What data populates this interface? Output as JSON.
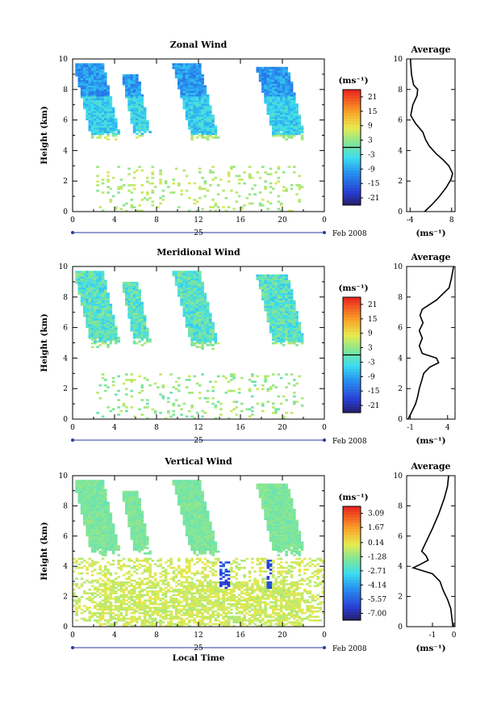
{
  "figure": {
    "date_label": "Feb 2008",
    "day_label": "25",
    "xlabel_bottom": "Local Time",
    "avg_title": "Average",
    "avg_unit": "(ms⁻¹)",
    "cbar_unit": "(ms⁻¹)"
  },
  "chart_data": [
    {
      "type": "heatmap",
      "title": "Zonal Wind",
      "xlabel": "",
      "ylabel": "Height (km)",
      "x_ticks": [
        "0",
        "4",
        "8",
        "12",
        "16",
        "20",
        "0"
      ],
      "y_ticks": [
        "0",
        "2",
        "4",
        "6",
        "8",
        "10"
      ],
      "xlim": [
        0,
        24
      ],
      "ylim": [
        0,
        10
      ],
      "colorbar": {
        "unit": "(ms⁻¹)",
        "ticks": [
          "21",
          "15",
          "9",
          "3",
          "-3",
          "-9",
          "-15",
          "-21"
        ],
        "range": [
          -24,
          24
        ],
        "zero_line": 0
      },
      "average_profile": {
        "title": "Average",
        "xlabel": "(ms⁻¹)",
        "x_ticks": [
          "-4",
          "8"
        ],
        "xlim": [
          -5,
          9
        ],
        "y_ticks": [
          "0",
          "2",
          "4",
          "6",
          "8",
          "10"
        ],
        "points": [
          [
            0.2,
            0
          ],
          [
            2.5,
            0.5
          ],
          [
            4.5,
            1.0
          ],
          [
            6.5,
            1.6
          ],
          [
            7.8,
            2.1
          ],
          [
            8.3,
            2.5
          ],
          [
            7.2,
            3.0
          ],
          [
            5.5,
            3.4
          ],
          [
            3.5,
            3.8
          ],
          [
            1.5,
            4.3
          ],
          [
            0.5,
            4.7
          ],
          [
            -0.3,
            5.2
          ],
          [
            -2.5,
            5.8
          ],
          [
            -3.8,
            6.3
          ],
          [
            -3.2,
            7.0
          ],
          [
            -2.0,
            7.6
          ],
          [
            -1.8,
            8.0
          ],
          [
            -3.0,
            8.3
          ],
          [
            -3.6,
            9.0
          ],
          [
            -3.9,
            10
          ]
        ]
      }
    },
    {
      "type": "heatmap",
      "title": "Meridional Wind",
      "xlabel": "",
      "ylabel": "Height (km)",
      "x_ticks": [
        "0",
        "4",
        "8",
        "12",
        "16",
        "20",
        "0"
      ],
      "y_ticks": [
        "0",
        "2",
        "4",
        "6",
        "8",
        "10"
      ],
      "xlim": [
        0,
        24
      ],
      "ylim": [
        0,
        10
      ],
      "colorbar": {
        "unit": "(ms⁻¹)",
        "ticks": [
          "21",
          "15",
          "9",
          "3",
          "-3",
          "-9",
          "-15",
          "-21"
        ],
        "range": [
          -24,
          24
        ],
        "zero_line": 0
      },
      "average_profile": {
        "title": "Average",
        "xlabel": "(ms⁻¹)",
        "x_ticks": [
          "-1",
          "4"
        ],
        "xlim": [
          -1.5,
          5
        ],
        "y_ticks": [
          "0",
          "2",
          "4",
          "6",
          "8",
          "10"
        ],
        "points": [
          [
            -1.3,
            0
          ],
          [
            -0.8,
            0.5
          ],
          [
            -0.3,
            1.0
          ],
          [
            0.0,
            1.5
          ],
          [
            0.2,
            2.0
          ],
          [
            0.5,
            2.5
          ],
          [
            0.8,
            3.0
          ],
          [
            1.6,
            3.4
          ],
          [
            2.8,
            3.7
          ],
          [
            2.5,
            4.0
          ],
          [
            0.6,
            4.3
          ],
          [
            0.2,
            4.8
          ],
          [
            0.6,
            5.3
          ],
          [
            0.2,
            5.8
          ],
          [
            0.7,
            6.3
          ],
          [
            0.3,
            6.8
          ],
          [
            0.6,
            7.2
          ],
          [
            2.5,
            7.8
          ],
          [
            4.2,
            8.6
          ],
          [
            4.5,
            9.2
          ],
          [
            4.8,
            10
          ]
        ]
      }
    },
    {
      "type": "heatmap",
      "title": "Vertical Wind",
      "xlabel": "Local Time",
      "ylabel": "Height (km)",
      "x_ticks": [
        "0",
        "4",
        "8",
        "12",
        "16",
        "20",
        "0"
      ],
      "y_ticks": [
        "0",
        "2",
        "4",
        "6",
        "8",
        "10"
      ],
      "xlim": [
        0,
        24
      ],
      "ylim": [
        0,
        10
      ],
      "colorbar": {
        "unit": "(ms⁻¹)",
        "ticks": [
          "3.09",
          "1.67",
          "0.14",
          "-1.28",
          "-2.71",
          "-4.14",
          "-5.57",
          "-7.00"
        ],
        "range": [
          -7.7,
          3.8
        ],
        "zero_line": null
      },
      "average_profile": {
        "title": "Average",
        "xlabel": "(ms⁻¹)",
        "x_ticks": [
          "-1",
          "0"
        ],
        "xlim": [
          -2.2,
          0.05
        ],
        "y_ticks": [
          "0",
          "2",
          "4",
          "6",
          "8",
          "10"
        ],
        "points": [
          [
            -0.05,
            0
          ],
          [
            -0.1,
            0.6
          ],
          [
            -0.15,
            1.2
          ],
          [
            -0.3,
            1.8
          ],
          [
            -0.5,
            2.4
          ],
          [
            -0.65,
            3.0
          ],
          [
            -1.0,
            3.5
          ],
          [
            -1.9,
            3.9
          ],
          [
            -1.6,
            4.1
          ],
          [
            -1.2,
            4.4
          ],
          [
            -1.3,
            4.7
          ],
          [
            -1.5,
            5.0
          ],
          [
            -1.3,
            5.6
          ],
          [
            -1.0,
            6.5
          ],
          [
            -0.7,
            7.5
          ],
          [
            -0.45,
            8.5
          ],
          [
            -0.3,
            9.3
          ],
          [
            -0.25,
            10
          ]
        ]
      }
    }
  ]
}
